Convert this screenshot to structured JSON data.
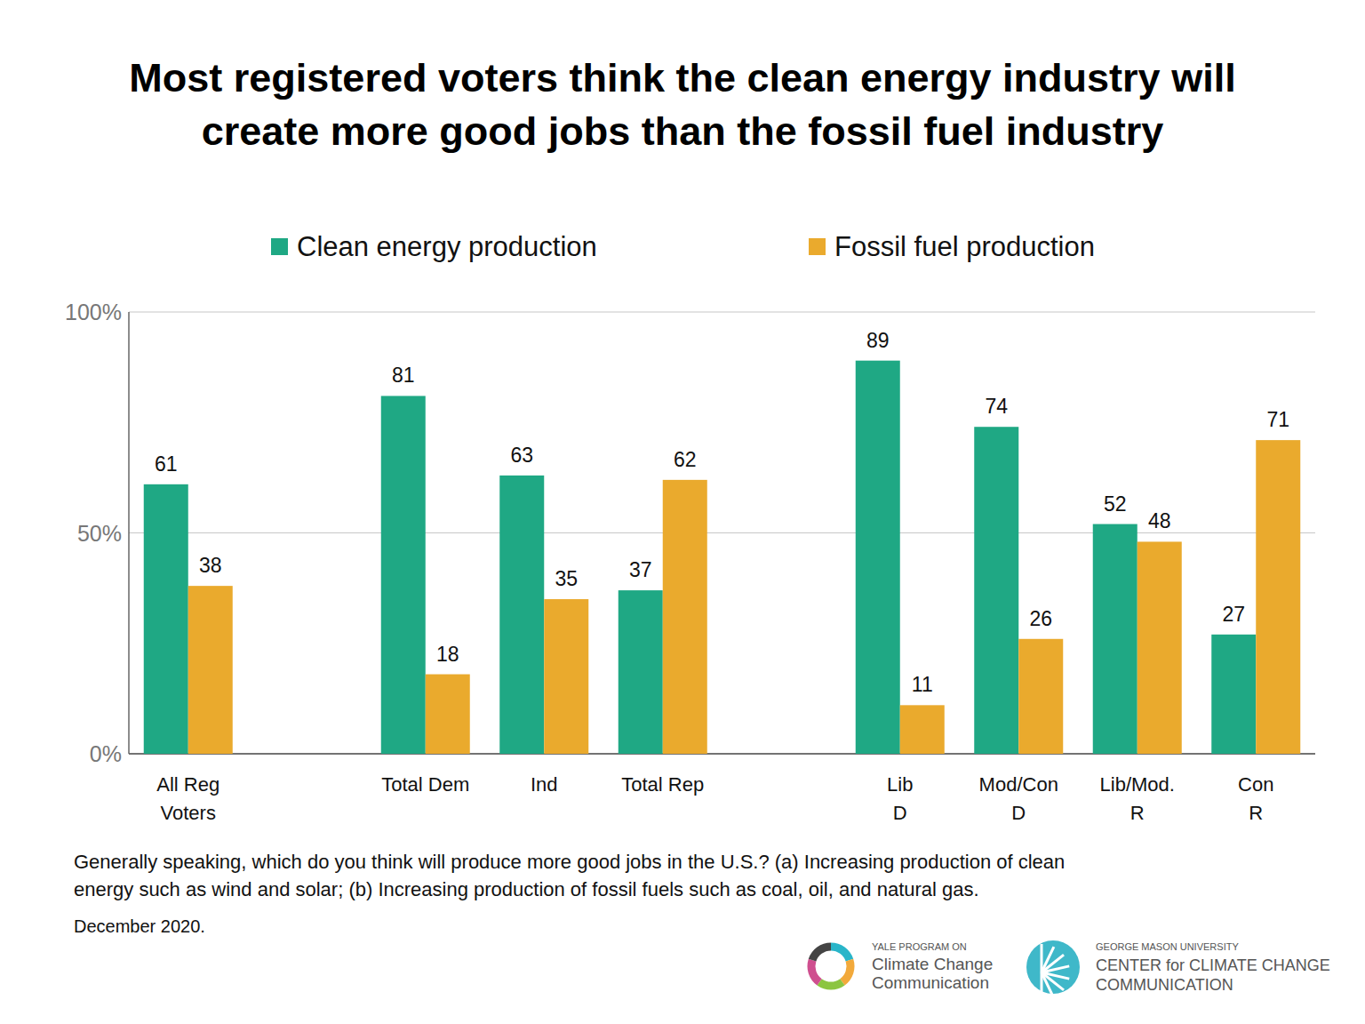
{
  "chart_data": {
    "type": "bar",
    "title": "Most registered voters think the clean energy industry will\ncreate more good jobs than the fossil fuel industry",
    "categories": [
      "All Reg\nVoters",
      "Total Dem",
      "Ind",
      "Total Rep",
      "Lib\nD",
      "Mod/Con\nD",
      "Lib/Mod.\nR",
      "Con\nR"
    ],
    "series": [
      {
        "name": "Clean energy production",
        "color": "#1fa884",
        "values": [
          61,
          81,
          63,
          37,
          89,
          74,
          52,
          27
        ]
      },
      {
        "name": "Fossil fuel production",
        "color": "#eaaa2d",
        "values": [
          38,
          18,
          35,
          62,
          11,
          26,
          48,
          71
        ]
      }
    ],
    "ylim": [
      0,
      100
    ],
    "yticks": [
      {
        "value": 0,
        "label": "0%"
      },
      {
        "value": 50,
        "label": "50%"
      },
      {
        "value": 100,
        "label": "100%"
      }
    ],
    "grid": true,
    "legend": "top",
    "data_labels": true,
    "note": "Generally speaking, which do you think will produce more good jobs in the U.S.? (a) Increasing production of clean\nenergy such as wind and solar; (b) Increasing production of fossil fuels such as coal, oil, and natural gas.",
    "date": "December 2020.",
    "logos": [
      {
        "lines": [
          "YALE PROGRAM ON",
          "Climate Change",
          "Communication"
        ]
      },
      {
        "lines": [
          "GEORGE MASON UNIVERSITY",
          "CENTER for CLIMATE CHANGE",
          "COMMUNICATION"
        ]
      }
    ]
  }
}
